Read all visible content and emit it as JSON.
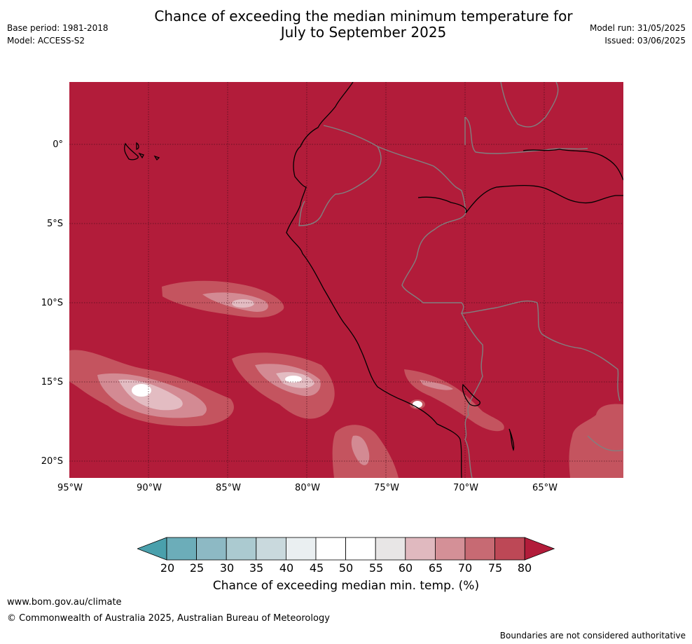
{
  "header": {
    "base_period": "Base period: 1981-2018",
    "model": "Model: ACCESS-S2",
    "title_line1": "Chance of exceeding the median minimum temperature for",
    "title_line2": "July to September 2025",
    "model_run": "Model run: 31/05/2025",
    "issued": "Issued: 03/06/2025"
  },
  "map": {
    "latitude_labels": [
      "0°",
      "5°S",
      "10°S",
      "15°S",
      "20°S"
    ],
    "longitude_labels": [
      "95°W",
      "90°W",
      "85°W",
      "80°W",
      "75°W",
      "70°W",
      "65°W"
    ],
    "colors": {
      "background": "#b21c3a",
      "coastline": "#000000",
      "border": "#808080",
      "gridline": "#3a0a14"
    }
  },
  "colorbar": {
    "tick_labels": [
      "20",
      "25",
      "30",
      "35",
      "40",
      "45",
      "50",
      "55",
      "60",
      "65",
      "70",
      "75",
      "80"
    ],
    "colors": [
      "#4aa0ac",
      "#6cadb9",
      "#8db9c4",
      "#abcad0",
      "#c9d9dd",
      "#eaeff1",
      "#ffffff",
      "#ffffff",
      "#e8e6e6",
      "#e0b9bf",
      "#d49097",
      "#c76a73",
      "#bd4856",
      "#b21c3a"
    ],
    "label": "Chance of exceeding median min. temp. (%)"
  },
  "footer": {
    "website": "www.bom.gov.au/climate",
    "copyright": "© Commonwealth of Australia 2025, Australian Bureau of Meteorology",
    "disclaimer": "Boundaries are not considered authoritative"
  }
}
